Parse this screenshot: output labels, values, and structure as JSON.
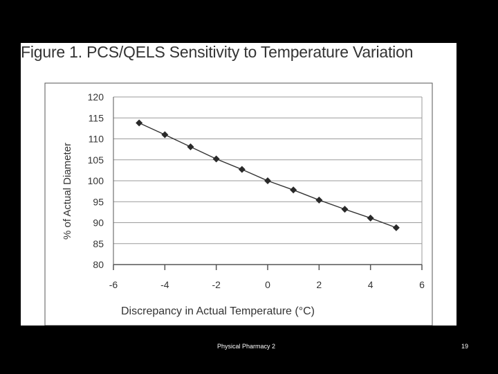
{
  "slide": {
    "footer": "Physical Pharmacy 2",
    "page_number": "19"
  },
  "chart_data": {
    "type": "line",
    "title": "Figure 1. PCS/QELS Sensitivity to Temperature Variation",
    "xlabel": "Discrepancy in Actual Temperature (°C)",
    "ylabel": "% of Actual Diameter",
    "xlim": [
      -6,
      6
    ],
    "ylim": [
      80,
      120
    ],
    "x_ticks": [
      "-6",
      "-4",
      "-2",
      "0",
      "2",
      "4",
      "6"
    ],
    "y_ticks": [
      "120",
      "115",
      "110",
      "105",
      "100",
      "95",
      "90",
      "85",
      "80"
    ],
    "grid": "horizontal",
    "marker": "diamond",
    "series": [
      {
        "x": [
          -5,
          -4,
          -3,
          -2,
          -1,
          0,
          1,
          2,
          3,
          4,
          5
        ],
        "values": [
          113.8,
          111.0,
          108.1,
          105.2,
          102.7,
          100.0,
          97.8,
          95.4,
          93.2,
          91.1,
          88.8
        ]
      }
    ],
    "colors": {
      "line": "#333333",
      "marker": "#2a2a2a",
      "grid": "#9a9a9a",
      "frame": "#555555"
    }
  }
}
